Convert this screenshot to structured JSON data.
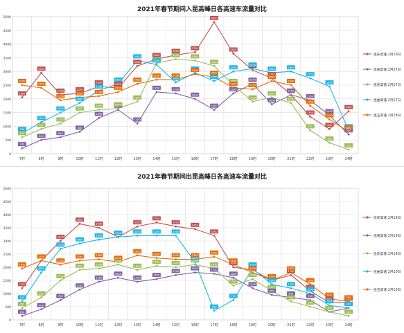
{
  "chart_data": [
    {
      "type": "line",
      "title": "2021年春节期间入昆高峰日各高速车流量对比",
      "categories": [
        "7时",
        "8时",
        "9时",
        "10时",
        "11时",
        "12时",
        "13时",
        "14时",
        "15时",
        "16时",
        "17时",
        "18时",
        "19时",
        "20时",
        "21时",
        "22时",
        "23时",
        "24时"
      ],
      "ylim": [
        0,
        5000
      ],
      "yticks": [
        "0",
        "500",
        "1000",
        "1500",
        "2000",
        "2500",
        "3000",
        "3500",
        "4000",
        "4500",
        "5000"
      ],
      "grid": true,
      "legend_position": "right",
      "series": [
        {
          "name": "昆安高速 2月19日",
          "color": "#c0504d",
          "values": [
            2050,
            2950,
            2150,
            2200,
            2450,
            2400,
            3200,
            3450,
            3600,
            3700,
            4800,
            3650,
            3050,
            2750,
            2150,
            1350,
            900,
            1550
          ]
        },
        {
          "name": "昆嵩高速 2月27日",
          "color": "#8064a2",
          "values": [
            200,
            500,
            600,
            800,
            1300,
            1600,
            1100,
            2250,
            2200,
            2000,
            1600,
            2200,
            2550,
            1800,
            2150,
            1950,
            1400,
            700
          ]
        },
        {
          "name": "昆武高速 2月17日",
          "color": "#9bbb59",
          "values": [
            600,
            900,
            1100,
            1500,
            1600,
            1650,
            1900,
            3300,
            3450,
            3400,
            3200,
            2500,
            1900,
            2050,
            1850,
            850,
            400,
            150
          ]
        },
        {
          "name": "昆曲高速 2月17日",
          "color": "#1eb4e4",
          "values": [
            750,
            1150,
            1500,
            1850,
            2300,
            2550,
            3400,
            3250,
            2600,
            2950,
            2650,
            3000,
            3100,
            2950,
            3000,
            2750,
            2450,
            850
          ]
        },
        {
          "name": "昆玉高速 2月18日",
          "color": "#e36c09",
          "values": [
            2500,
            2400,
            1950,
            2050,
            2100,
            2250,
            2550,
            2700,
            2700,
            2900,
            2800,
            2400,
            2350,
            2650,
            2500,
            1750,
            1250,
            800
          ]
        }
      ],
      "labels": [
        [
          2050,
          2950,
          2150,
          2200,
          2450,
          2400,
          3200,
          3450,
          3600,
          3700,
          4800,
          3650,
          3050,
          2750,
          2150,
          1350,
          900,
          1550
        ],
        [
          200,
          500,
          600,
          800,
          1300,
          1600,
          1100,
          2250,
          2200,
          2000,
          1600,
          2200,
          2550,
          1800,
          2150,
          1950,
          1400,
          700
        ],
        [
          600,
          900,
          1100,
          1500,
          1600,
          1650,
          1900,
          3300,
          3450,
          3400,
          3200,
          2500,
          1900,
          2050,
          1850,
          850,
          400,
          150
        ],
        [
          750,
          1150,
          1500,
          1850,
          2300,
          2550,
          3400,
          3250,
          2600,
          2950,
          2650,
          3000,
          3100,
          2950,
          3000,
          2750,
          2450,
          850
        ],
        [
          2500,
          2400,
          1950,
          2050,
          2100,
          2250,
          2550,
          2700,
          2700,
          2900,
          2800,
          2400,
          2350,
          2650,
          2500,
          1750,
          1250,
          800
        ]
      ]
    },
    {
      "type": "line",
      "title": "2021年春节期间出昆高峰日各高速车流量对比",
      "categories": [
        "7时",
        "8时",
        "9时",
        "10时",
        "11时",
        "12时",
        "13时",
        "14时",
        "15时",
        "16时",
        "17时",
        "18时",
        "19时",
        "20时",
        "21时",
        "22时",
        "23时",
        "24时"
      ],
      "ylim": [
        0,
        5000
      ],
      "yticks": [
        "0",
        "500",
        "1000",
        "1500",
        "2000",
        "2500",
        "3000",
        "3500",
        "4000",
        "4500",
        "5000"
      ],
      "grid": true,
      "legend_position": "right",
      "series": [
        {
          "name": "昆安高速 2月16日",
          "color": "#c0504d",
          "values": [
            1200,
            2250,
            3000,
            3650,
            3500,
            3150,
            3550,
            3700,
            3550,
            3450,
            3200,
            2000,
            1900,
            1500,
            1700,
            1100,
            650,
            650
          ]
        },
        {
          "name": "昆嵩高速 2月16日",
          "color": "#8064a2",
          "values": [
            150,
            400,
            750,
            1150,
            1450,
            1600,
            1450,
            1550,
            1700,
            1800,
            1750,
            1600,
            1200,
            950,
            850,
            750,
            300,
            450
          ]
        },
        {
          "name": "昆武高速 2月16日",
          "color": "#9bbb59",
          "values": [
            450,
            850,
            1500,
            1900,
            1950,
            2100,
            1900,
            2050,
            2000,
            2100,
            1950,
            1300,
            1550,
            1100,
            700,
            500,
            300,
            150
          ]
        },
        {
          "name": "昆曲高速 2月10日",
          "color": "#1eb4e4",
          "values": [
            700,
            1800,
            2700,
            2900,
            3050,
            3150,
            3200,
            3200,
            3200,
            2200,
            350,
            750,
            1950,
            1350,
            1200,
            1000,
            550,
            450
          ]
        },
        {
          "name": "昆玉高速 2月10日",
          "color": "#e36c09",
          "values": [
            1950,
            2250,
            2100,
            2250,
            2300,
            2200,
            2450,
            2350,
            2300,
            2300,
            2400,
            2100,
            1800,
            1500,
            1800,
            1350,
            800,
            700
          ]
        }
      ],
      "labels": [
        [
          1200,
          2250,
          3000,
          3650,
          3500,
          3150,
          3550,
          3700,
          3550,
          3450,
          3200,
          2000,
          1900,
          1500,
          1700,
          1100,
          650,
          650
        ],
        [
          150,
          400,
          750,
          1150,
          1450,
          1600,
          1450,
          1550,
          1700,
          1800,
          1750,
          1600,
          1200,
          950,
          850,
          750,
          300,
          450
        ],
        [
          450,
          850,
          1500,
          1900,
          1950,
          2100,
          1900,
          2050,
          2000,
          2100,
          1950,
          1300,
          1550,
          1100,
          700,
          500,
          300,
          150
        ],
        [
          700,
          1800,
          2700,
          2900,
          3050,
          3150,
          3200,
          3200,
          3200,
          2200,
          350,
          750,
          1950,
          1350,
          1200,
          1000,
          550,
          450
        ],
        [
          1950,
          2250,
          2100,
          2250,
          2300,
          2200,
          2450,
          2350,
          2300,
          2300,
          2400,
          2100,
          1800,
          1500,
          1800,
          1350,
          800,
          700
        ]
      ]
    }
  ]
}
